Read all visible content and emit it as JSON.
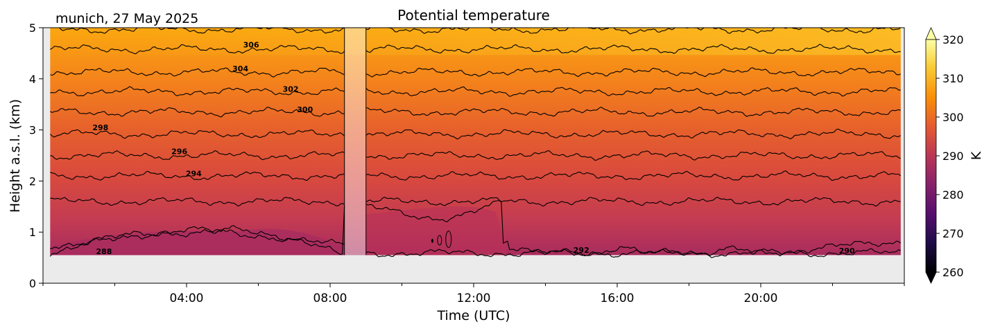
{
  "chart_data": {
    "type": "heatmap",
    "title": "Potential temperature",
    "location_date": "munich, 27 May 2025",
    "xlabel": "Time (UTC)",
    "ylabel": "Height a.s.l. (km)",
    "x_ticks": [
      "04:00",
      "08:00",
      "12:00",
      "16:00",
      "20:00"
    ],
    "x_tick_hours": [
      4,
      8,
      12,
      16,
      20
    ],
    "xlim_hours": [
      0,
      24
    ],
    "y_ticks": [
      "0",
      "1",
      "2",
      "3",
      "4",
      "5"
    ],
    "ylim_km": [
      0,
      5
    ],
    "data_bottom_km": 0.55,
    "data_start_hour": 0.2,
    "data_end_hour": 23.9,
    "missing_interval_hours": [
      8.4,
      9.0
    ],
    "colorbar": {
      "label": "K",
      "colormap": "inferno",
      "range": [
        260,
        320
      ],
      "ticks": [
        "260",
        "270",
        "280",
        "290",
        "300",
        "310",
        "320"
      ],
      "extend": "both"
    },
    "contour_step_K": 2,
    "contours": [
      {
        "level": 288,
        "height_km": 0.72
      },
      {
        "level": 290,
        "height_km": 1.25
      },
      {
        "level": 292,
        "height_km": 1.6
      },
      {
        "level": 294,
        "height_km": 2.1
      },
      {
        "level": 296,
        "height_km": 2.5
      },
      {
        "level": 298,
        "height_km": 2.92
      },
      {
        "level": 300,
        "height_km": 3.35
      },
      {
        "level": 302,
        "height_km": 3.75
      },
      {
        "level": 304,
        "height_km": 4.13
      },
      {
        "level": 306,
        "height_km": 4.58
      },
      {
        "level": 308,
        "height_km": 4.97
      }
    ],
    "contour_labels": [
      {
        "text": "306",
        "hour": 5.8,
        "height_km": 4.67
      },
      {
        "text": "304",
        "hour": 5.5,
        "height_km": 4.2
      },
      {
        "text": "302",
        "hour": 6.9,
        "height_km": 3.8
      },
      {
        "text": "300",
        "hour": 7.3,
        "height_km": 3.4
      },
      {
        "text": "298",
        "hour": 1.6,
        "height_km": 3.05
      },
      {
        "text": "296",
        "hour": 3.8,
        "height_km": 2.58
      },
      {
        "text": "294",
        "hour": 4.2,
        "height_km": 2.15
      },
      {
        "text": "288",
        "hour": 1.7,
        "height_km": 0.62
      },
      {
        "text": "292",
        "hour": 15.0,
        "height_km": 0.65
      },
      {
        "text": "290",
        "hour": 22.4,
        "height_km": 0.64
      }
    ]
  }
}
